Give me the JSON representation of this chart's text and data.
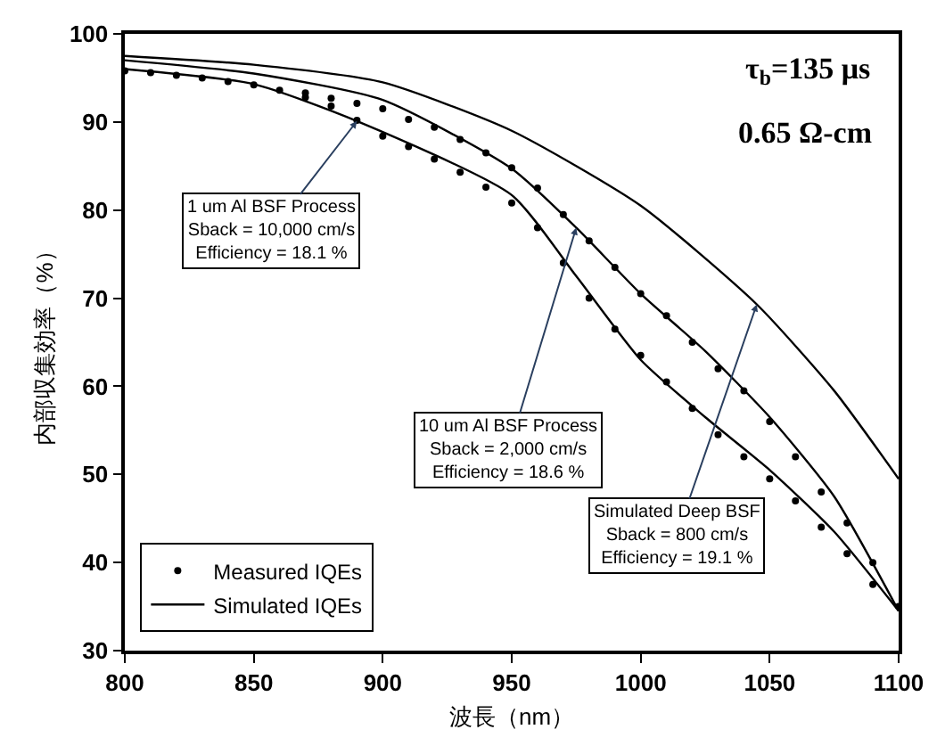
{
  "chart_data": {
    "type": "line",
    "xlabel": "波長（nm）",
    "ylabel": "内部収集効率（%）",
    "xlim": [
      800,
      1100
    ],
    "xticks": [
      800,
      850,
      900,
      950,
      1000,
      1050,
      1100
    ],
    "ylim": [
      30,
      100
    ],
    "yticks": [
      30,
      40,
      50,
      60,
      70,
      80,
      90,
      100
    ],
    "legend": "bottom left",
    "series": [
      {
        "type": "scatter",
        "name": "Measured IQEs",
        "color": "#000000",
        "x": [
          800,
          810,
          820,
          830,
          840,
          850,
          860,
          870,
          880,
          890,
          900,
          910,
          920,
          930,
          940,
          950,
          960,
          970,
          980,
          990,
          1000,
          1010,
          1020,
          1030,
          1040,
          1050,
          1060,
          1070,
          1080,
          1090,
          1100
        ],
        "values": [
          95.8,
          95.6,
          95.3,
          95.0,
          94.6,
          94.2,
          93.6,
          92.8,
          91.8,
          90.2,
          88.4,
          87.2,
          85.8,
          84.3,
          82.6,
          80.8,
          78.0,
          74.0,
          70.0,
          66.5,
          63.5,
          60.5,
          57.5,
          54.5,
          52.0,
          49.5,
          47.0,
          44.0,
          41.0,
          37.5,
          35.0
        ]
      },
      {
        "type": "scatter",
        "color": "#000000",
        "x": [
          870,
          880,
          890,
          900,
          910,
          920,
          930,
          940,
          950,
          960,
          970,
          980,
          990,
          1000,
          1010,
          1020,
          1030,
          1040,
          1050,
          1060,
          1070,
          1080,
          1090
        ],
        "values": [
          93.3,
          92.7,
          92.1,
          91.5,
          90.3,
          89.4,
          88.0,
          86.5,
          84.8,
          82.5,
          79.5,
          76.5,
          73.5,
          70.5,
          68.0,
          65.0,
          62.0,
          59.5,
          56.0,
          52.0,
          48.0,
          44.5,
          40.0
        ]
      },
      {
        "name": "Simulated IQEs",
        "color": "#000000",
        "x": [
          800,
          850,
          890,
          950,
          975,
          1000,
          1025,
          1050,
          1075,
          1100
        ],
        "values": [
          96.0,
          94.3,
          90.1,
          81.7,
          72.5,
          63.0,
          56.5,
          50.5,
          43.5,
          34.5
        ]
      },
      {
        "color": "#000000",
        "x": [
          800,
          850,
          900,
          950,
          975,
          1000,
          1025,
          1050,
          1075,
          1100
        ],
        "values": [
          97.0,
          95.5,
          92.5,
          84.7,
          78.0,
          70.5,
          64.0,
          56.5,
          47.5,
          34.5
        ]
      },
      {
        "color": "#000000",
        "x": [
          800,
          850,
          900,
          950,
          1000,
          1045,
          1075,
          1100
        ],
        "values": [
          97.5,
          96.5,
          94.5,
          89.0,
          80.5,
          69.3,
          59.5,
          49.5
        ]
      }
    ],
    "annotations": [
      "τ$_{b}$=135 μs",
      "0.65 Ω-cm",
      {
        "text": "1 um Al BSF Process\nSback = 10,000 cm/s\nEfficiency = 18.1 %",
        "x": 890,
        "y": 90.1
      },
      {
        "text": "10 um Al BSF Process\nSback = 2,000 cm/s\nEfficiency = 18.6 %",
        "x": 975,
        "y": 78.0
      },
      {
        "text": "Simulated Deep BSF\nSback = 800 cm/s\nEfficiency = 19.1 %",
        "x": 1045,
        "y": 69.3
      }
    ]
  }
}
